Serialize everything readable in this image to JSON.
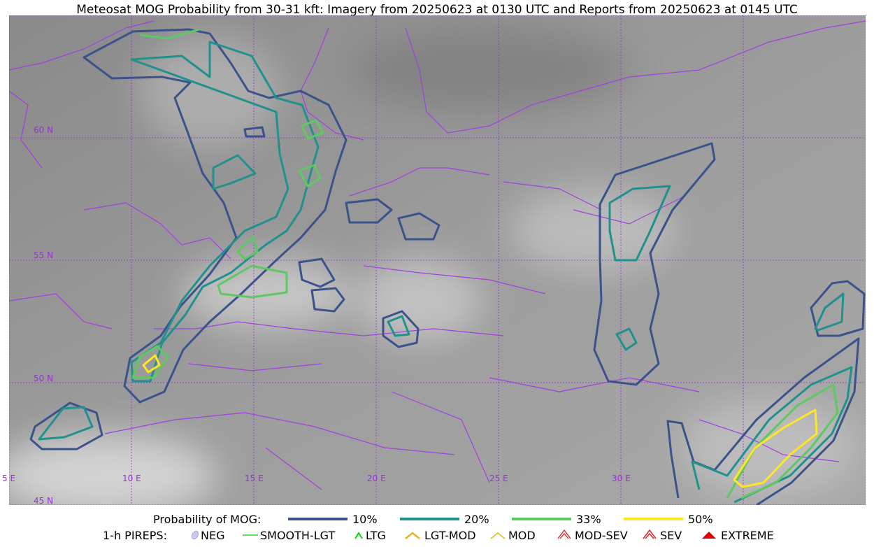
{
  "title": "Meteosat MOG Probability from 30-31 kft: Imagery from 20250623 at 0130 UTC and Reports from 20250623 at 0145 UTC",
  "map": {
    "lat_labels": [
      "60 N",
      "55 N",
      "50 N",
      "45 N"
    ],
    "lon_labels": [
      "5 E",
      "10 E",
      "15 E",
      "20 E",
      "25 E",
      "30 E"
    ]
  },
  "legend": {
    "probability": {
      "label": "Probability of MOG:",
      "items": [
        "10%",
        "20%",
        "33%",
        "50%"
      ]
    },
    "pireps": {
      "label": "1-h PIREPS:",
      "items": [
        "NEG",
        "SMOOTH-LGT",
        "LTG",
        "LGT-MOD",
        "MOD",
        "MOD-SEV",
        "SEV",
        "EXTREME"
      ]
    }
  }
}
